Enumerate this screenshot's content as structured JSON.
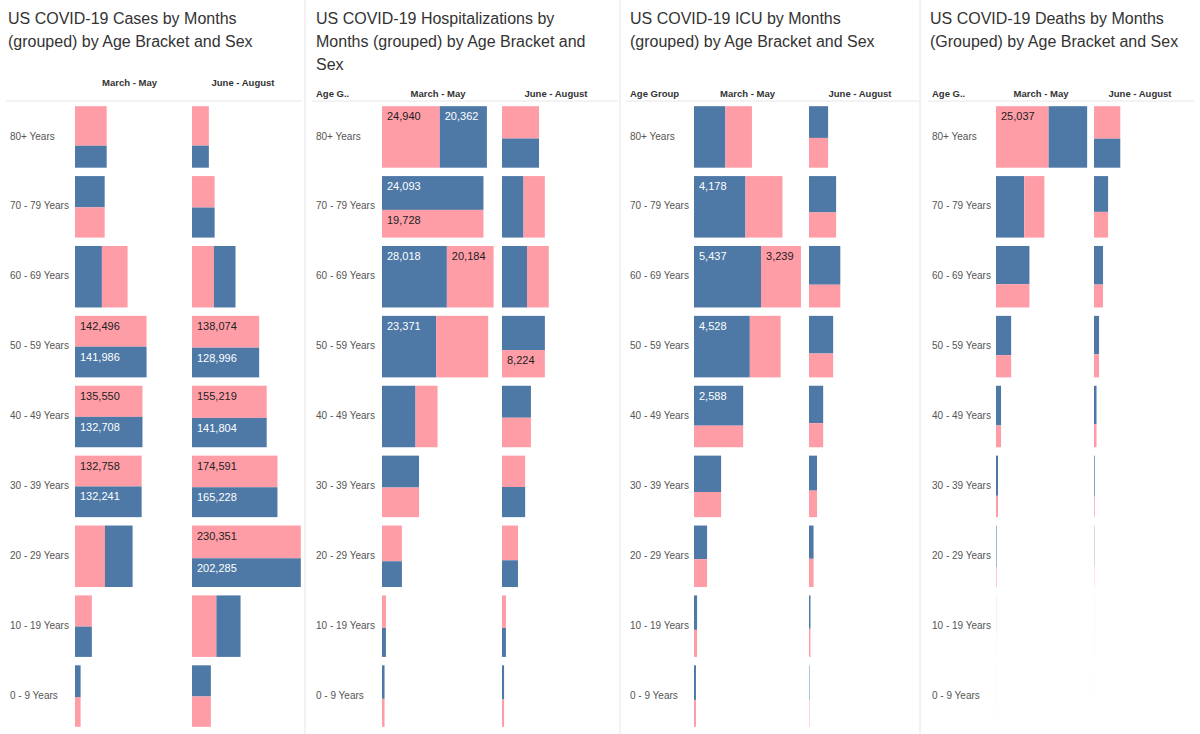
{
  "chart_data": [
    {
      "type": "treemap",
      "title": "US COVID-19 Cases by Months (grouped) by Age Bracket and Sex",
      "categories": [
        "80+ Years",
        "70 - 79 Years",
        "60 - 69 Years",
        "50 - 59 Years",
        "40 - 49 Years",
        "30 - 39 Years",
        "20 - 29 Years",
        "10 - 19 Years",
        "0 - 9 Years"
      ],
      "columns": [
        "March - May",
        "June - August"
      ],
      "data_labels": true,
      "series": [
        {
          "color": "#ff9da7",
          "values": [
            [
              81000,
              58000,
              102000,
              142496,
              135550,
              132758,
              119000,
              34000,
              10800
            ],
            [
              43000,
              46000,
              87000,
              138074,
              155219,
              174591,
              230351,
              97000,
              37000
            ]
          ],
          "value_labels": [
            [
              null,
              null,
              null,
              "142,496",
              "135,550",
              "132,758",
              null,
              null,
              null
            ],
            [
              null,
              null,
              null,
              "138,074",
              "155,219",
              "174,591",
              "230,351",
              null,
              null
            ]
          ]
        },
        {
          "color": "#4e79a7",
          "values": [
            [
              45000,
              60000,
              107000,
              141986,
              132708,
              132241,
              110000,
              33000,
              11500
            ],
            [
              24000,
              44000,
              86000,
              128996,
              141804,
              165228,
              202285,
              96000,
              38000
            ]
          ],
          "value_labels": [
            [
              null,
              null,
              null,
              "141,986",
              "132,708",
              "132,241",
              null,
              null,
              null
            ],
            [
              null,
              null,
              null,
              "128,996",
              "141,804",
              "165,228",
              "202,285",
              null,
              null
            ]
          ]
        }
      ]
    },
    {
      "type": "treemap",
      "title": "US COVID-19 Hospitalizations by Months (grouped) by Age Bracket and Sex",
      "row_header": "Age G..",
      "categories": [
        "80+ Years",
        "70 - 79 Years",
        "60 - 69 Years",
        "50 - 59 Years",
        "40 - 49 Years",
        "30 - 39 Years",
        "20 - 29 Years",
        "10 - 19 Years",
        "0 - 9 Years"
      ],
      "columns": [
        "March - May",
        "June - August"
      ],
      "data_labels": true,
      "series": [
        {
          "color": "#ff9da7",
          "values": [
            [
              24940,
              19728,
              20184,
              22500,
              9500,
              7700,
              5000,
              900,
              500
            ],
            [
              8400,
              9200,
              9400,
              8224,
              6000,
              5100,
              3900,
              900,
              400
            ]
          ],
          "value_labels": [
            [
              "24,940",
              "19,728",
              "20,184",
              null,
              null,
              null,
              null,
              null,
              null
            ],
            [
              null,
              null,
              null,
              "8,224",
              null,
              null,
              null,
              null,
              null
            ]
          ]
        },
        {
          "color": "#4e79a7",
          "values": [
            [
              20362,
              24093,
              28018,
              23371,
              14500,
              8300,
              3600,
              800,
              600
            ],
            [
              7600,
              9300,
              10800,
              10300,
              6500,
              4900,
              3000,
              800,
              500
            ]
          ],
          "value_labels": [
            [
              "20,362",
              "24,093",
              "28,018",
              "23,371",
              null,
              null,
              null,
              null,
              null
            ],
            [
              null,
              null,
              null,
              null,
              null,
              null,
              null,
              null,
              null
            ]
          ]
        }
      ]
    },
    {
      "type": "treemap",
      "title": "US COVID-19 ICU by Months (grouped) by Age Bracket and Sex",
      "row_header": "Age Group",
      "categories": [
        "80+ Years",
        "70 - 79 Years",
        "60 - 69 Years",
        "50 - 59 Years",
        "40 - 49 Years",
        "30 - 39 Years",
        "20 - 29 Years",
        "10 - 19 Years",
        "0 - 9 Years"
      ],
      "columns": [
        "March - May",
        "June - August"
      ],
      "data_labels": true,
      "series": [
        {
          "color": "#ff9da7",
          "values": [
            [
              2150,
              3000,
              3239,
              2500,
              1400,
              900,
              480,
              110,
              70
            ],
            [
              750,
              900,
              940,
              760,
              450,
              280,
              170,
              55,
              15
            ]
          ],
          "value_labels": [
            [
              null,
              null,
              "3,239",
              null,
              null,
              null,
              null,
              null,
              null
            ],
            [
              null,
              null,
              null,
              null,
              null,
              null,
              null,
              null,
              null
            ]
          ]
        },
        {
          "color": "#4e79a7",
          "values": [
            [
              2550,
              4178,
              5437,
              4528,
              2588,
              1300,
              580,
              140,
              90
            ],
            [
              800,
              1300,
              1600,
              1200,
              700,
              370,
              200,
              65,
              20
            ]
          ],
          "value_labels": [
            [
              null,
              "4,178",
              "5,437",
              "4,528",
              "2,588",
              null,
              null,
              null,
              null
            ],
            [
              null,
              null,
              null,
              null,
              null,
              null,
              null,
              null,
              null
            ]
          ]
        }
      ]
    },
    {
      "type": "treemap",
      "title": "US COVID-19 Deaths by Months (Grouped) by Age Bracket and Sex",
      "row_header": "Age G..",
      "categories": [
        "80+ Years",
        "70 - 79 Years",
        "60 - 69 Years",
        "50 - 59 Years",
        "40 - 49 Years",
        "30 - 39 Years",
        "20 - 29 Years",
        "10 - 19 Years",
        "0 - 9 Years"
      ],
      "columns": [
        "March - May",
        "June - August"
      ],
      "data_labels": true,
      "series": [
        {
          "color": "#ff9da7",
          "values": [
            [
              25037,
              9600,
              6000,
              2600,
              850,
              330,
              80,
              15,
              8
            ],
            [
              6600,
              2800,
              1600,
              900,
              450,
              110,
              40,
              8,
              4
            ]
          ],
          "value_labels": [
            [
              "25,037",
              null,
              null,
              null,
              null,
              null,
              null,
              null,
              null
            ],
            [
              null,
              null,
              null,
              null,
              null,
              null,
              null,
              null,
              null
            ]
          ]
        },
        {
          "color": "#4e79a7",
          "values": [
            [
              18300,
              13400,
              9900,
              4600,
              1550,
              620,
              170,
              25,
              10
            ],
            [
              5900,
              3900,
              2700,
              1500,
              750,
              220,
              80,
              15,
              5
            ]
          ],
          "value_labels": [
            [
              null,
              null,
              null,
              null,
              null,
              null,
              null,
              null,
              null
            ],
            [
              null,
              null,
              null,
              null,
              null,
              null,
              null,
              null,
              null
            ]
          ]
        }
      ]
    }
  ]
}
